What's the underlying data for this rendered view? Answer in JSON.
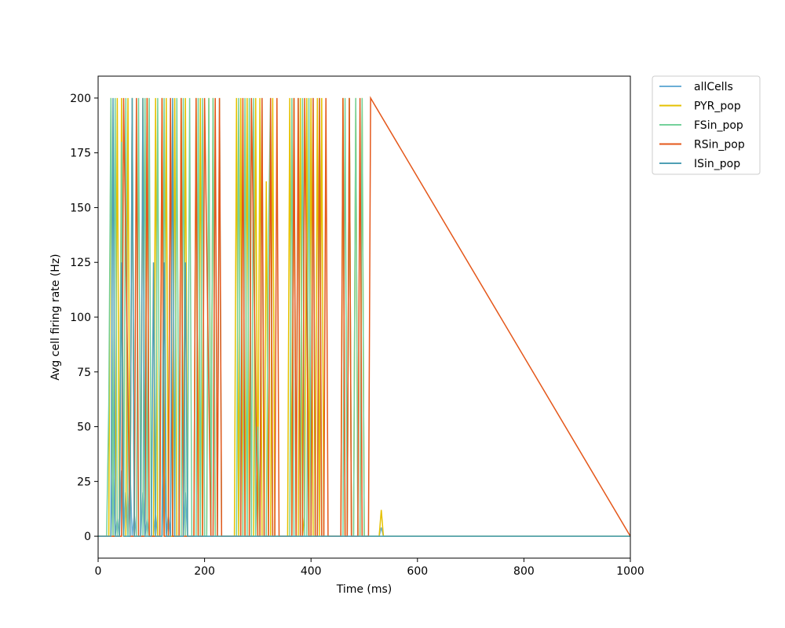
{
  "chart_data": {
    "type": "line",
    "title": "",
    "xlabel": "Time (ms)",
    "ylabel": "Avg cell firing rate (Hz)",
    "xlim": [
      0,
      1000
    ],
    "ylim": [
      -10,
      210
    ],
    "xticks": [
      0,
      200,
      400,
      600,
      800,
      1000
    ],
    "yticks": [
      0,
      25,
      50,
      75,
      100,
      125,
      150,
      175,
      200
    ],
    "grid": false,
    "legend": {
      "placement": "outside-upper-right"
    },
    "series": [
      {
        "name": "allCells",
        "color": "#6baed6",
        "x": [
          0,
          20,
          24,
          28,
          32,
          36,
          40,
          44,
          48,
          52,
          56,
          60,
          64,
          68,
          72,
          76,
          80,
          84,
          88,
          92,
          96,
          100,
          104,
          108,
          112,
          116,
          120,
          124,
          128,
          132,
          136,
          140,
          144,
          148,
          152,
          156,
          160,
          164,
          168,
          172,
          176,
          180,
          184,
          188,
          192,
          196,
          200,
          204,
          208,
          212,
          216,
          220,
          224,
          228,
          232,
          236,
          240,
          244,
          248,
          252,
          256,
          260,
          264,
          268,
          272,
          276,
          280,
          284,
          288,
          292,
          296,
          300,
          304,
          308,
          312,
          316,
          320,
          324,
          328,
          332,
          336,
          340,
          344,
          348,
          352,
          356,
          360,
          364,
          368,
          372,
          376,
          380,
          384,
          388,
          392,
          396,
          400,
          404,
          408,
          412,
          416,
          420,
          424,
          428,
          432,
          436,
          440,
          444,
          448,
          452,
          456,
          460,
          464,
          468,
          472,
          476,
          480,
          484,
          488,
          492,
          496,
          500,
          504,
          508,
          512,
          516,
          520,
          524,
          528,
          532,
          536,
          540,
          1000
        ],
        "values": [
          0,
          0,
          0,
          30,
          0,
          8,
          0,
          30,
          0,
          20,
          0,
          30,
          0,
          10,
          0,
          0,
          0,
          20,
          0,
          8,
          0,
          0,
          0,
          10,
          0,
          0,
          0,
          30,
          0,
          10,
          0,
          0,
          0,
          0,
          0,
          0,
          0,
          20,
          0,
          0,
          0,
          0,
          0,
          0,
          0,
          0,
          0,
          0,
          0,
          0,
          0,
          0,
          0,
          0,
          0,
          0,
          0,
          0,
          0,
          0,
          0,
          0,
          0,
          0,
          0,
          0,
          0,
          0,
          0,
          0,
          0,
          0,
          0,
          0,
          0,
          0,
          0,
          0,
          0,
          0,
          0,
          0,
          0,
          0,
          0,
          0,
          0,
          0,
          0,
          0,
          0,
          0,
          0,
          0,
          0,
          0,
          0,
          0,
          0,
          0,
          0,
          0,
          0,
          0,
          0,
          0,
          0,
          0,
          0,
          0,
          0,
          0,
          0,
          0,
          0,
          0,
          0,
          0,
          0,
          0,
          0,
          0,
          0,
          0,
          0,
          0,
          0,
          0,
          0,
          4,
          0,
          0,
          0
        ]
      },
      {
        "name": "PYR_pop",
        "color": "#e5c100",
        "x": [
          0,
          20,
          24,
          28,
          32,
          36,
          40,
          44,
          48,
          52,
          56,
          60,
          64,
          68,
          72,
          80,
          84,
          88,
          92,
          96,
          100,
          104,
          108,
          112,
          116,
          120,
          124,
          128,
          132,
          136,
          140,
          144,
          148,
          152,
          156,
          160,
          164,
          168,
          172,
          176,
          180,
          184,
          188,
          192,
          196,
          200,
          204,
          208,
          212,
          216,
          220,
          224,
          228,
          232,
          240,
          256,
          260,
          264,
          268,
          272,
          276,
          280,
          284,
          288,
          292,
          296,
          300,
          304,
          308,
          312,
          316,
          320,
          324,
          328,
          332,
          336,
          340,
          356,
          360,
          364,
          368,
          372,
          376,
          380,
          384,
          388,
          392,
          396,
          400,
          404,
          408,
          412,
          416,
          420,
          424,
          428,
          432,
          440,
          456,
          460,
          464,
          468,
          472,
          476,
          480,
          484,
          488,
          492,
          496,
          500,
          504,
          508,
          512,
          524,
          528,
          532,
          536,
          540,
          1000
        ],
        "values": [
          0,
          0,
          200,
          0,
          0,
          200,
          0,
          200,
          0,
          0,
          200,
          0,
          200,
          0,
          0,
          0,
          200,
          0,
          200,
          0,
          0,
          0,
          200,
          0,
          0,
          200,
          0,
          200,
          0,
          0,
          0,
          200,
          0,
          0,
          200,
          0,
          200,
          0,
          0,
          0,
          0,
          200,
          0,
          200,
          0,
          0,
          0,
          200,
          0,
          200,
          0,
          0,
          0,
          0,
          0,
          0,
          200,
          0,
          200,
          0,
          0,
          200,
          0,
          0,
          0,
          200,
          0,
          200,
          0,
          0,
          162,
          0,
          0,
          200,
          0,
          0,
          0,
          0,
          200,
          0,
          200,
          0,
          0,
          200,
          0,
          10,
          200,
          0,
          200,
          0,
          0,
          200,
          0,
          200,
          0,
          0,
          0,
          0,
          0,
          200,
          0,
          0,
          200,
          0,
          0,
          200,
          0,
          0,
          200,
          0,
          0,
          0,
          0,
          0,
          0,
          12,
          0,
          0,
          0
        ]
      },
      {
        "name": "FSin_pop",
        "color": "#74d19b",
        "x": [
          0,
          16,
          20,
          24,
          28,
          32,
          36,
          40,
          44,
          48,
          52,
          56,
          60,
          64,
          68,
          72,
          76,
          80,
          84,
          88,
          92,
          96,
          100,
          104,
          108,
          112,
          116,
          120,
          124,
          128,
          132,
          136,
          140,
          144,
          148,
          152,
          156,
          160,
          164,
          168,
          172,
          176,
          180,
          184,
          188,
          192,
          196,
          200,
          204,
          208,
          212,
          216,
          220,
          224,
          228,
          232,
          236,
          240,
          256,
          260,
          264,
          268,
          272,
          276,
          280,
          284,
          288,
          292,
          296,
          300,
          304,
          308,
          312,
          316,
          320,
          324,
          328,
          332,
          336,
          340,
          356,
          360,
          364,
          368,
          372,
          376,
          380,
          384,
          388,
          392,
          396,
          400,
          404,
          408,
          412,
          416,
          420,
          424,
          428,
          432,
          436,
          440,
          456,
          460,
          464,
          468,
          472,
          476,
          480,
          484,
          488,
          492,
          496,
          500,
          504,
          508,
          512,
          1000
        ],
        "values": [
          0,
          0,
          60,
          200,
          0,
          200,
          0,
          0,
          180,
          0,
          200,
          0,
          0,
          200,
          0,
          0,
          200,
          0,
          0,
          200,
          0,
          200,
          0,
          0,
          0,
          200,
          0,
          0,
          200,
          0,
          0,
          200,
          0,
          0,
          200,
          0,
          0,
          200,
          0,
          0,
          200,
          0,
          0,
          0,
          200,
          0,
          200,
          0,
          0,
          200,
          0,
          200,
          0,
          0,
          200,
          0,
          0,
          0,
          0,
          0,
          200,
          0,
          0,
          200,
          0,
          200,
          0,
          200,
          0,
          50,
          0,
          200,
          0,
          0,
          137,
          200,
          0,
          0,
          0,
          0,
          0,
          0,
          200,
          0,
          0,
          200,
          0,
          200,
          0,
          0,
          200,
          0,
          200,
          0,
          0,
          200,
          0,
          0,
          0,
          0,
          0,
          0,
          0,
          0,
          200,
          0,
          200,
          0,
          0,
          200,
          0,
          0,
          200,
          0,
          0,
          0,
          0,
          0
        ]
      },
      {
        "name": "RSin_pop",
        "color": "#e4571a",
        "x": [
          0,
          40,
          44,
          48,
          60,
          64,
          68,
          72,
          76,
          80,
          88,
          92,
          96,
          100,
          104,
          108,
          116,
          120,
          124,
          128,
          132,
          136,
          140,
          148,
          152,
          156,
          160,
          164,
          168,
          180,
          184,
          188,
          192,
          196,
          200,
          212,
          216,
          220,
          224,
          228,
          232,
          236,
          256,
          268,
          272,
          276,
          280,
          284,
          288,
          300,
          304,
          308,
          312,
          316,
          320,
          324,
          328,
          332,
          336,
          340,
          360,
          364,
          368,
          372,
          376,
          380,
          384,
          388,
          396,
          400,
          404,
          408,
          412,
          416,
          420,
          424,
          428,
          432,
          436,
          448,
          452,
          456,
          460,
          464,
          468,
          472,
          476,
          480,
          484,
          488,
          492,
          496,
          500,
          504,
          508,
          512,
          1000
        ],
        "values": [
          0,
          0,
          0,
          200,
          0,
          0,
          0,
          200,
          0,
          0,
          0,
          200,
          0,
          0,
          0,
          0,
          0,
          200,
          0,
          0,
          0,
          200,
          0,
          0,
          0,
          200,
          0,
          0,
          0,
          0,
          200,
          0,
          0,
          0,
          200,
          0,
          0,
          200,
          0,
          200,
          0,
          0,
          0,
          0,
          200,
          0,
          0,
          0,
          200,
          0,
          0,
          200,
          0,
          0,
          0,
          200,
          0,
          0,
          200,
          0,
          0,
          0,
          200,
          0,
          200,
          0,
          0,
          200,
          0,
          0,
          200,
          0,
          0,
          200,
          0,
          0,
          200,
          0,
          0,
          0,
          0,
          0,
          200,
          0,
          0,
          200,
          0,
          0,
          0,
          0,
          200,
          0,
          0,
          0,
          0,
          200,
          0
        ]
      },
      {
        "name": "ISin_pop",
        "color": "#4f9fb4",
        "x": [
          0,
          24,
          28,
          32,
          40,
          44,
          48,
          60,
          64,
          68,
          80,
          84,
          88,
          100,
          104,
          108,
          112,
          120,
          124,
          128,
          136,
          140,
          144,
          148,
          152,
          160,
          164,
          168,
          172,
          1000
        ],
        "values": [
          0,
          0,
          200,
          0,
          0,
          125,
          0,
          0,
          200,
          0,
          0,
          200,
          0,
          0,
          125,
          0,
          0,
          0,
          125,
          0,
          0,
          200,
          0,
          0,
          0,
          0,
          125,
          0,
          0,
          0
        ]
      }
    ]
  }
}
